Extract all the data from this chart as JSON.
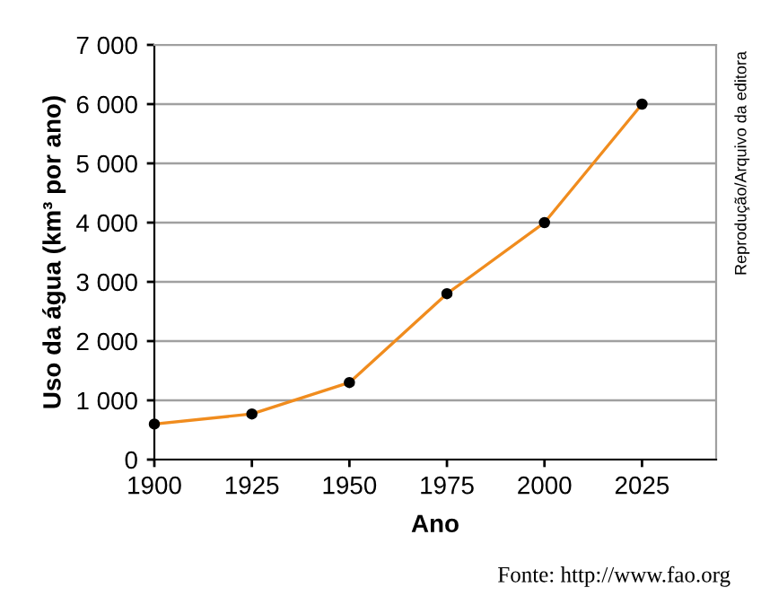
{
  "chart_data": {
    "type": "line",
    "xlabel": "Ano",
    "ylabel": "Uso da água (km³ por ano)",
    "x": [
      1900,
      1925,
      1950,
      1975,
      2000,
      2025
    ],
    "series": [
      {
        "color": "#f08c1e",
        "values": [
          600,
          770,
          1300,
          2800,
          4000,
          6000
        ]
      }
    ],
    "xlim": [
      1900,
      2044
    ],
    "xticks": [
      1900,
      1925,
      1950,
      1975,
      2000,
      2025
    ],
    "ylim": [
      0,
      7000
    ],
    "yticks": [
      0,
      {
        "value": 1000,
        "label": "1 000"
      },
      {
        "value": 2000,
        "label": "2 000"
      },
      {
        "value": 3000,
        "label": "3 000"
      },
      {
        "value": 4000,
        "label": "4 000"
      },
      {
        "value": 5000,
        "label": "5 000"
      },
      {
        "value": 6000,
        "label": "6 000"
      },
      {
        "value": 7000,
        "label": "7 000"
      }
    ],
    "grid": "y",
    "marker": "circle",
    "line_style": "solid",
    "legend": false,
    "annotations": [
      "Fonte: http://www.fao.org",
      "Reprodução/Arquivo da editora"
    ]
  }
}
